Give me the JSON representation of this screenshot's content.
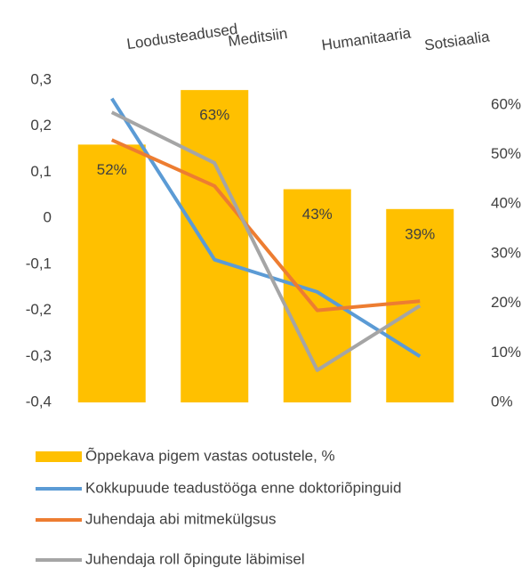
{
  "chart_data": {
    "type": "bar_line",
    "categories": [
      "Loodusteadused",
      "Meditsiin",
      "Humanitaaria",
      "Sotsiaalia"
    ],
    "series": [
      {
        "name": "Õppekava pigem vastas ootustele, %",
        "type": "bar",
        "axis": "y2",
        "color": "#FFC000",
        "values": [
          52,
          63,
          43,
          39
        ],
        "value_labels": [
          "52%",
          "63%",
          "43%",
          "39%"
        ]
      },
      {
        "name": "Kokkupuude teadustööga enne doktoriõpinguid",
        "type": "line",
        "color": "#5B9BD5",
        "values": [
          0.26,
          -0.09,
          -0.16,
          -0.3
        ]
      },
      {
        "name": "Juhendaja abi mitmekülgsus",
        "type": "line",
        "color": "#ED7D31",
        "values": [
          0.17,
          0.07,
          -0.2,
          -0.18
        ]
      },
      {
        "name": "Juhendaja roll õpingute läbimisel",
        "type": "line",
        "color": "#A5A5A5",
        "values": [
          0.23,
          0.12,
          -0.33,
          -0.19
        ]
      }
    ],
    "ylim": [
      -0.4,
      0.3
    ],
    "yticks": [
      {
        "value": -0.4,
        "label": "-0,4"
      },
      {
        "value": -0.3,
        "label": "-0,3"
      },
      {
        "value": -0.2,
        "label": "-0,2"
      },
      {
        "value": -0.1,
        "label": "-0,1"
      },
      0,
      {
        "value": 0.1,
        "label": "0,1"
      },
      {
        "value": 0.2,
        "label": "0,2"
      },
      {
        "value": 0.3,
        "label": "0,3"
      }
    ],
    "y2lim": [
      0,
      65
    ],
    "y2ticks": [
      {
        "value": 0,
        "label": "0%"
      },
      {
        "value": 10,
        "label": "10%"
      },
      {
        "value": 20,
        "label": "20%"
      },
      {
        "value": 30,
        "label": "30%"
      },
      {
        "value": 40,
        "label": "40%"
      },
      {
        "value": 50,
        "label": "50%"
      },
      {
        "value": 60,
        "label": "60%"
      }
    ],
    "legend": "bottom"
  }
}
